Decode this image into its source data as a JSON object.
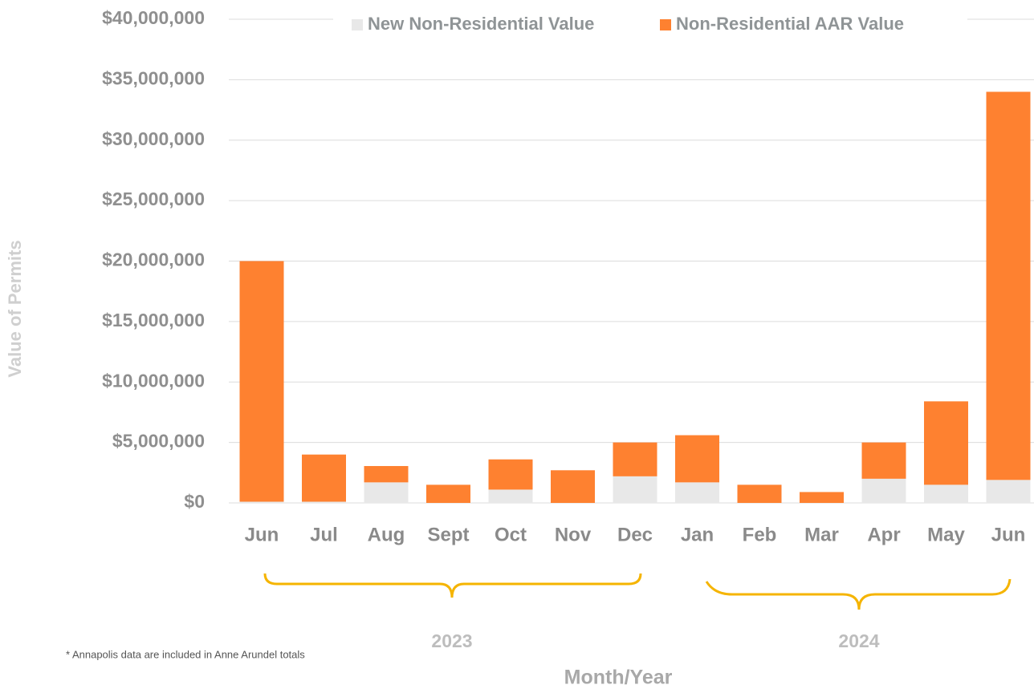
{
  "chart_data": {
    "type": "stacked_bar",
    "categories": [
      "Jun",
      "Jul",
      "Aug",
      "Sept",
      "Oct",
      "Nov",
      "Dec",
      "Jan",
      "Feb",
      "Mar",
      "Apr",
      "May",
      "Jun"
    ],
    "series": [
      {
        "name": "New Non-Residential Value",
        "color": "#e8e8e8",
        "values": [
          0.1,
          0.1,
          1.7,
          0,
          1.1,
          0,
          2.2,
          1.7,
          0,
          0,
          2.0,
          1.5,
          1.9
        ]
      },
      {
        "name": "Non-Residential AAR Value",
        "color": "#fe8130",
        "values": [
          19.9,
          3.9,
          1.35,
          1.5,
          2.5,
          2.7,
          2.8,
          3.9,
          1.5,
          0.9,
          3.0,
          6.9,
          32.1
        ]
      }
    ],
    "ylim": [
      0,
      40
    ],
    "yticks": [
      {
        "value": 0,
        "label": "$0"
      },
      {
        "value": 5,
        "label": "$5,000,000"
      },
      {
        "value": 10,
        "label": "$10,000,000"
      },
      {
        "value": 15,
        "label": "$15,000,000"
      },
      {
        "value": 20,
        "label": "$20,000,000"
      },
      {
        "value": 25,
        "label": "$25,000,000"
      },
      {
        "value": 30,
        "label": "$30,000,000"
      },
      {
        "value": 35,
        "label": "$35,000,000"
      },
      {
        "value": 40,
        "label": "$40,000,000"
      }
    ],
    "grid": true,
    "y_label": "Value of Permits",
    "x_label": "Month/Year",
    "x_groups": [
      "2023",
      "2024"
    ],
    "footnote": "*  Annapolis data are  included in Anne Arundel totals"
  }
}
